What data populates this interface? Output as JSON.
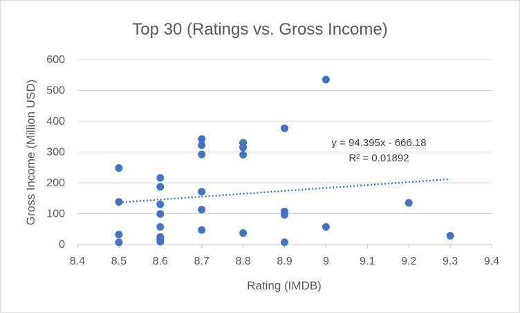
{
  "chart_data": {
    "type": "scatter",
    "title": "Top 30 (Ratings vs. Gross Income)",
    "xlabel": "Rating (IMDB)",
    "ylabel": "Gross Income (Million USD)",
    "xlim": [
      8.4,
      9.4
    ],
    "ylim": [
      0,
      600
    ],
    "xticks": [
      "8.4",
      "8.5",
      "8.6",
      "8.7",
      "8.8",
      "8.9",
      "9",
      "9.1",
      "9.2",
      "9.3",
      "9.4"
    ],
    "yticks": [
      "0",
      "100",
      "200",
      "300",
      "400",
      "500",
      "600"
    ],
    "grid": "horizontal",
    "marker_color": "#4472c4",
    "points": [
      {
        "x": 8.5,
        "y": 248
      },
      {
        "x": 8.5,
        "y": 138
      },
      {
        "x": 8.5,
        "y": 32
      },
      {
        "x": 8.5,
        "y": 7
      },
      {
        "x": 8.6,
        "y": 216
      },
      {
        "x": 8.6,
        "y": 187
      },
      {
        "x": 8.6,
        "y": 130
      },
      {
        "x": 8.6,
        "y": 99
      },
      {
        "x": 8.6,
        "y": 57
      },
      {
        "x": 8.6,
        "y": 24
      },
      {
        "x": 8.6,
        "y": 17
      },
      {
        "x": 8.6,
        "y": 9
      },
      {
        "x": 8.7,
        "y": 342
      },
      {
        "x": 8.7,
        "y": 322
      },
      {
        "x": 8.7,
        "y": 292
      },
      {
        "x": 8.7,
        "y": 171
      },
      {
        "x": 8.7,
        "y": 113
      },
      {
        "x": 8.7,
        "y": 47
      },
      {
        "x": 8.8,
        "y": 330
      },
      {
        "x": 8.8,
        "y": 315
      },
      {
        "x": 8.8,
        "y": 291
      },
      {
        "x": 8.8,
        "y": 37
      },
      {
        "x": 8.9,
        "y": 377
      },
      {
        "x": 8.9,
        "y": 107
      },
      {
        "x": 8.9,
        "y": 96
      },
      {
        "x": 8.9,
        "y": 7
      },
      {
        "x": 9.0,
        "y": 535
      },
      {
        "x": 9.0,
        "y": 57
      },
      {
        "x": 9.2,
        "y": 135
      },
      {
        "x": 9.3,
        "y": 28
      }
    ],
    "trendline": {
      "type": "linear",
      "slope": 94.395,
      "intercept": -666.18,
      "x_range": [
        8.5,
        9.3
      ],
      "equation_label": "y = 94.395x - 666.18",
      "r2_label": "R² = 0.01892"
    }
  }
}
